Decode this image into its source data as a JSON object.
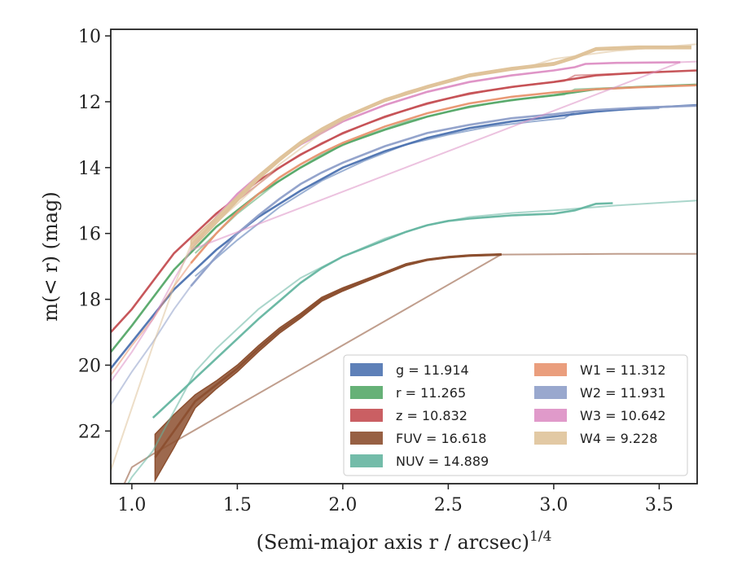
{
  "chart_data": {
    "type": "line",
    "xlabel": "(Semi-major axis r / arcsec)",
    "xlabel_sup": "1/4",
    "ylabel": "m(< r) (mag)",
    "xlim": [
      0.9,
      3.68
    ],
    "ylim": [
      23.6,
      9.8
    ],
    "y_inverted": true,
    "x_ticks": [
      1.0,
      1.5,
      2.0,
      2.5,
      3.0,
      3.5
    ],
    "x_tick_labels": [
      "1.0",
      "1.5",
      "2.0",
      "2.5",
      "3.0",
      "3.5"
    ],
    "y_ticks": [
      10,
      12,
      14,
      16,
      18,
      20,
      22
    ],
    "y_tick_labels": [
      "10",
      "12",
      "14",
      "16",
      "18",
      "20",
      "22"
    ],
    "grid": false,
    "legend_position": "lower-right",
    "legend_columns": 2,
    "series": [
      {
        "name": "g = 11.914",
        "color": "#4c72b0",
        "points": [
          [
            0.9,
            20.1
          ],
          [
            1.0,
            19.3
          ],
          [
            1.2,
            17.7
          ],
          [
            1.4,
            16.5
          ],
          [
            1.6,
            15.5
          ],
          [
            1.8,
            14.7
          ],
          [
            2.0,
            14.0
          ],
          [
            2.2,
            13.5
          ],
          [
            2.4,
            13.1
          ],
          [
            2.6,
            12.8
          ],
          [
            2.8,
            12.6
          ],
          [
            3.0,
            12.45
          ],
          [
            3.2,
            12.3
          ],
          [
            3.4,
            12.2
          ],
          [
            3.68,
            12.1
          ]
        ],
        "aperture_points": [
          [
            1.3,
            17.3
          ],
          [
            1.5,
            16.2
          ],
          [
            1.7,
            15.2
          ],
          [
            1.9,
            14.4
          ],
          [
            2.1,
            13.8
          ],
          [
            2.3,
            13.3
          ],
          [
            2.5,
            13.0
          ],
          [
            2.7,
            12.75
          ],
          [
            2.9,
            12.6
          ],
          [
            3.05,
            12.5
          ],
          [
            3.1,
            12.3
          ],
          [
            3.3,
            12.25
          ],
          [
            3.5,
            12.2
          ]
        ]
      },
      {
        "name": "r = 11.265",
        "color": "#55a868",
        "points": [
          [
            0.9,
            19.6
          ],
          [
            1.0,
            18.8
          ],
          [
            1.2,
            17.1
          ],
          [
            1.4,
            15.8
          ],
          [
            1.6,
            14.8
          ],
          [
            1.8,
            14.0
          ],
          [
            2.0,
            13.3
          ],
          [
            2.2,
            12.85
          ],
          [
            2.4,
            12.45
          ],
          [
            2.6,
            12.15
          ],
          [
            2.8,
            11.95
          ],
          [
            3.0,
            11.8
          ],
          [
            3.2,
            11.62
          ],
          [
            3.4,
            11.55
          ],
          [
            3.68,
            11.48
          ]
        ],
        "aperture_points": [
          [
            1.3,
            16.6
          ],
          [
            1.5,
            15.4
          ],
          [
            1.7,
            14.4
          ],
          [
            1.9,
            13.6
          ],
          [
            2.1,
            13.05
          ],
          [
            2.3,
            12.6
          ],
          [
            2.5,
            12.3
          ],
          [
            2.7,
            12.05
          ],
          [
            2.9,
            11.88
          ],
          [
            3.05,
            11.78
          ],
          [
            3.1,
            11.62
          ],
          [
            3.3,
            11.57
          ],
          [
            3.5,
            11.53
          ]
        ]
      },
      {
        "name": "z = 10.832",
        "color": "#c44e52",
        "points": [
          [
            0.9,
            19.0
          ],
          [
            1.0,
            18.3
          ],
          [
            1.2,
            16.6
          ],
          [
            1.4,
            15.4
          ],
          [
            1.6,
            14.4
          ],
          [
            1.8,
            13.6
          ],
          [
            2.0,
            12.95
          ],
          [
            2.2,
            12.45
          ],
          [
            2.4,
            12.05
          ],
          [
            2.6,
            11.75
          ],
          [
            2.8,
            11.55
          ],
          [
            3.0,
            11.4
          ],
          [
            3.2,
            11.2
          ],
          [
            3.4,
            11.12
          ],
          [
            3.68,
            11.05
          ]
        ],
        "aperture_points": [
          [
            1.3,
            16.2
          ],
          [
            1.5,
            15.0
          ],
          [
            1.7,
            14.0
          ],
          [
            1.9,
            13.25
          ],
          [
            2.1,
            12.7
          ],
          [
            2.3,
            12.25
          ],
          [
            2.5,
            11.9
          ],
          [
            2.7,
            11.65
          ],
          [
            2.9,
            11.47
          ],
          [
            3.05,
            11.37
          ],
          [
            3.1,
            11.2
          ],
          [
            3.3,
            11.15
          ],
          [
            3.45,
            11.12
          ]
        ]
      },
      {
        "name": "FUV = 16.618",
        "color": "#8c4f2f",
        "band": true,
        "points": [
          [
            1.11,
            22.8
          ],
          [
            1.2,
            22.0
          ],
          [
            1.3,
            21.1
          ],
          [
            1.4,
            20.6
          ],
          [
            1.5,
            20.1
          ],
          [
            1.6,
            19.5
          ],
          [
            1.7,
            18.95
          ],
          [
            1.8,
            18.5
          ],
          [
            1.9,
            18.0
          ],
          [
            2.0,
            17.7
          ],
          [
            2.1,
            17.45
          ],
          [
            2.2,
            17.2
          ],
          [
            2.3,
            16.95
          ],
          [
            2.4,
            16.8
          ],
          [
            2.5,
            16.72
          ],
          [
            2.6,
            16.67
          ],
          [
            2.75,
            16.64
          ]
        ],
        "band_halfwidth": [
          0.7,
          0.5,
          0.2,
          0.12,
          0.1,
          0.09,
          0.08,
          0.07,
          0.06,
          0.05,
          0.04,
          0.03,
          0.03,
          0.02,
          0.02,
          0.02,
          0.02
        ],
        "aperture_points": [
          [
            0.9,
            24.5
          ],
          [
            1.0,
            23.1
          ],
          [
            1.1,
            22.7
          ],
          [
            2.75,
            16.64
          ],
          [
            3.0,
            16.63
          ],
          [
            3.3,
            16.62
          ],
          [
            3.68,
            16.62
          ]
        ]
      },
      {
        "name": "NUV = 14.889",
        "color": "#64b5a0",
        "points": [
          [
            1.1,
            21.6
          ],
          [
            1.2,
            21.0
          ],
          [
            1.3,
            20.4
          ],
          [
            1.4,
            19.8
          ],
          [
            1.5,
            19.2
          ],
          [
            1.6,
            18.6
          ],
          [
            1.7,
            18.05
          ],
          [
            1.8,
            17.5
          ],
          [
            1.9,
            17.05
          ],
          [
            2.0,
            16.7
          ],
          [
            2.1,
            16.45
          ],
          [
            2.2,
            16.2
          ],
          [
            2.3,
            15.95
          ],
          [
            2.4,
            15.75
          ],
          [
            2.5,
            15.62
          ],
          [
            2.6,
            15.55
          ],
          [
            2.8,
            15.45
          ],
          [
            3.0,
            15.4
          ],
          [
            3.1,
            15.3
          ],
          [
            3.2,
            15.1
          ],
          [
            3.28,
            15.08
          ]
        ],
        "aperture_points": [
          [
            0.9,
            24.5
          ],
          [
            1.0,
            23.4
          ],
          [
            1.1,
            22.6
          ],
          [
            1.2,
            21.4
          ],
          [
            1.3,
            20.2
          ],
          [
            1.4,
            19.5
          ],
          [
            1.6,
            18.3
          ],
          [
            1.8,
            17.35
          ],
          [
            2.0,
            16.7
          ],
          [
            2.2,
            16.15
          ],
          [
            2.4,
            15.75
          ],
          [
            2.6,
            15.5
          ],
          [
            2.8,
            15.38
          ],
          [
            3.0,
            15.3
          ],
          [
            3.3,
            15.15
          ],
          [
            3.68,
            15.0
          ]
        ]
      },
      {
        "name": "W1 = 11.312",
        "color": "#e8946f",
        "points": [
          [
            1.28,
            16.9
          ],
          [
            1.4,
            16.0
          ],
          [
            1.5,
            15.35
          ],
          [
            1.6,
            14.8
          ],
          [
            1.7,
            14.3
          ],
          [
            1.8,
            13.9
          ],
          [
            1.9,
            13.55
          ],
          [
            2.0,
            13.25
          ],
          [
            2.2,
            12.75
          ],
          [
            2.4,
            12.35
          ],
          [
            2.6,
            12.05
          ],
          [
            2.8,
            11.85
          ],
          [
            3.0,
            11.72
          ],
          [
            3.2,
            11.62
          ],
          [
            3.4,
            11.56
          ],
          [
            3.68,
            11.5
          ]
        ],
        "aperture_points": [
          [
            0.9,
            20.3
          ],
          [
            1.0,
            19.4
          ],
          [
            1.1,
            18.6
          ],
          [
            1.2,
            17.6
          ],
          [
            1.28,
            16.9
          ]
        ]
      },
      {
        "name": "W2 = 11.931",
        "color": "#8e9fc9",
        "points": [
          [
            1.28,
            17.6
          ],
          [
            1.4,
            16.7
          ],
          [
            1.5,
            16.0
          ],
          [
            1.6,
            15.45
          ],
          [
            1.7,
            14.95
          ],
          [
            1.8,
            14.5
          ],
          [
            1.9,
            14.15
          ],
          [
            2.0,
            13.85
          ],
          [
            2.2,
            13.35
          ],
          [
            2.4,
            12.95
          ],
          [
            2.6,
            12.7
          ],
          [
            2.8,
            12.5
          ],
          [
            3.0,
            12.38
          ],
          [
            3.1,
            12.3
          ],
          [
            3.2,
            12.25
          ],
          [
            3.4,
            12.18
          ],
          [
            3.68,
            12.12
          ]
        ],
        "aperture_points": [
          [
            0.9,
            21.2
          ],
          [
            1.0,
            20.2
          ],
          [
            1.1,
            19.3
          ],
          [
            1.2,
            18.3
          ],
          [
            1.28,
            17.6
          ]
        ]
      },
      {
        "name": "W3 = 10.642",
        "color": "#dd8fc4",
        "points": [
          [
            1.28,
            16.5
          ],
          [
            1.4,
            15.5
          ],
          [
            1.5,
            14.8
          ],
          [
            1.6,
            14.25
          ],
          [
            1.7,
            13.75
          ],
          [
            1.8,
            13.3
          ],
          [
            1.9,
            12.95
          ],
          [
            2.0,
            12.6
          ],
          [
            2.2,
            12.1
          ],
          [
            2.4,
            11.7
          ],
          [
            2.6,
            11.4
          ],
          [
            2.8,
            11.2
          ],
          [
            3.0,
            11.05
          ],
          [
            3.1,
            10.95
          ],
          [
            3.15,
            10.85
          ],
          [
            3.3,
            10.82
          ],
          [
            3.6,
            10.8
          ]
        ],
        "aperture_points": [
          [
            0.9,
            20.5
          ],
          [
            1.0,
            19.6
          ],
          [
            1.1,
            18.6
          ],
          [
            1.2,
            17.4
          ],
          [
            1.28,
            16.5
          ],
          [
            3.6,
            10.8
          ],
          [
            3.68,
            10.78
          ]
        ]
      },
      {
        "name": "W4 = 9.228",
        "color": "#dfc39a",
        "band": true,
        "points": [
          [
            1.28,
            16.35
          ],
          [
            1.4,
            15.6
          ],
          [
            1.5,
            14.95
          ],
          [
            1.6,
            14.3
          ],
          [
            1.7,
            13.75
          ],
          [
            1.8,
            13.25
          ],
          [
            1.9,
            12.85
          ],
          [
            2.0,
            12.5
          ],
          [
            2.2,
            11.95
          ],
          [
            2.4,
            11.55
          ],
          [
            2.6,
            11.2
          ],
          [
            2.8,
            11.0
          ],
          [
            3.0,
            10.85
          ],
          [
            3.1,
            10.65
          ],
          [
            3.2,
            10.4
          ],
          [
            3.4,
            10.35
          ],
          [
            3.65,
            10.35
          ]
        ],
        "band_halfwidth": [
          0.15,
          0.1,
          0.08,
          0.07,
          0.06,
          0.05,
          0.05,
          0.04,
          0.04,
          0.04,
          0.04,
          0.04,
          0.04,
          0.04,
          0.04,
          0.04,
          0.04
        ],
        "aperture_points": [
          [
            0.9,
            23.2
          ],
          [
            1.0,
            21.3
          ],
          [
            1.1,
            19.4
          ],
          [
            1.2,
            17.6
          ],
          [
            1.28,
            16.35
          ],
          [
            1.5,
            15.1
          ],
          [
            1.7,
            13.9
          ],
          [
            1.9,
            12.95
          ],
          [
            2.1,
            12.2
          ],
          [
            2.3,
            11.7
          ],
          [
            2.5,
            11.35
          ],
          [
            2.7,
            11.1
          ],
          [
            2.9,
            10.9
          ],
          [
            3.0,
            10.7
          ],
          [
            3.3,
            10.45
          ],
          [
            3.68,
            10.25
          ]
        ]
      }
    ]
  }
}
